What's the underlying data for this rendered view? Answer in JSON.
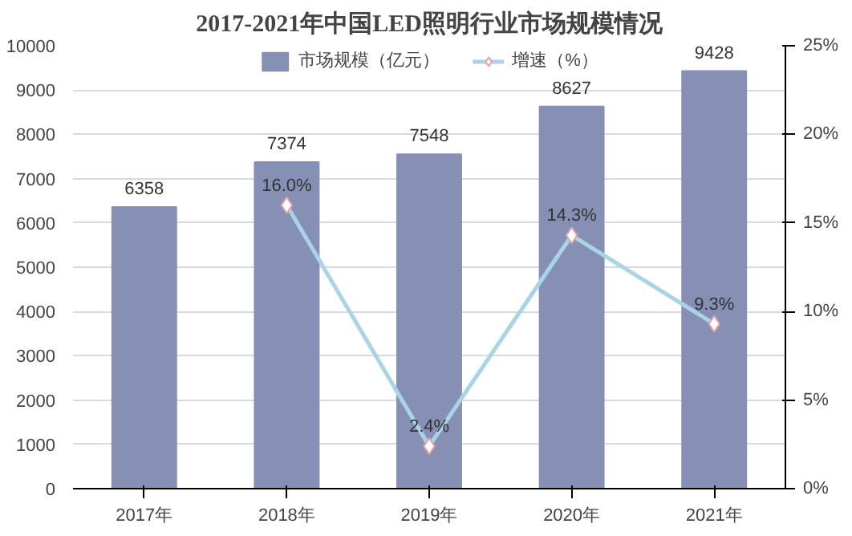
{
  "chart_data": {
    "type": "bar",
    "title": "2017-2021年中国LED照明行业市场规模情况",
    "categories": [
      "2017年",
      "2018年",
      "2019年",
      "2020年",
      "2021年"
    ],
    "series": [
      {
        "name": "市场规模（亿元）",
        "color": "#8690b5",
        "values": [
          6358,
          7374,
          7548,
          8627,
          9428
        ],
        "value_labels": [
          "6358",
          "7374",
          "7548",
          "8627",
          "9428"
        ]
      },
      {
        "name": "增速（%）",
        "type": "line",
        "axis": "y2",
        "color": "#a9d3e6",
        "marker": "diamond",
        "values": [
          null,
          16.0,
          2.4,
          14.3,
          9.3
        ],
        "value_labels": [
          null,
          "16.0%",
          "2.4%",
          "14.3%",
          "9.3%"
        ]
      }
    ],
    "ylim": [
      0,
      10000
    ],
    "yticks": [
      0,
      1000,
      2000,
      3000,
      4000,
      5000,
      6000,
      7000,
      8000,
      9000,
      10000
    ],
    "y2lim": [
      0,
      25
    ],
    "y2ticks": [
      {
        "value": 0,
        "label": "0%"
      },
      {
        "value": 5,
        "label": "5%"
      },
      {
        "value": 10,
        "label": "10%"
      },
      {
        "value": 15,
        "label": "15%"
      },
      {
        "value": 20,
        "label": "20%"
      },
      {
        "value": 25,
        "label": "25%"
      }
    ],
    "grid": "y",
    "legend": "top"
  }
}
